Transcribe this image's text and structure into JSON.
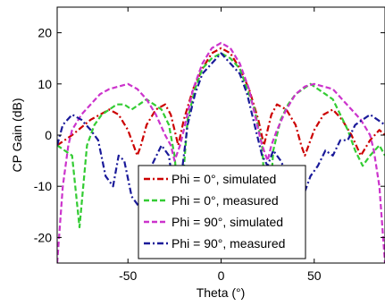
{
  "chart_data": {
    "type": "line",
    "title": "",
    "xlabel": "Theta (°)",
    "ylabel": "CP Gain (dB)",
    "xlim": [
      -88,
      88
    ],
    "ylim": [
      -25,
      25
    ],
    "xticks": [
      -50,
      0,
      50
    ],
    "yticks": [
      -20,
      -10,
      0,
      10,
      20
    ],
    "grid": false,
    "legend_position": "lower-center",
    "series": [
      {
        "name": "Phi = 0°, simulated",
        "color": "#cc0000",
        "style": "dash-dot",
        "x": [
          -88,
          -80,
          -70,
          -60,
          -55,
          -50,
          -47,
          -45,
          -43,
          -40,
          -35,
          -30,
          -27,
          -25,
          -23,
          -20,
          -15,
          -10,
          -5,
          0,
          5,
          10,
          15,
          20,
          23,
          25,
          27,
          30,
          35,
          40,
          43,
          45,
          47,
          50,
          55,
          60,
          65,
          70,
          75,
          80,
          85,
          88
        ],
        "y": [
          -2,
          0,
          3,
          5,
          4,
          1,
          -2,
          -4,
          -2,
          2,
          5,
          6,
          4,
          1,
          -2,
          3,
          9,
          13,
          16,
          17,
          16,
          13,
          9,
          3,
          -2,
          1,
          4,
          6,
          5,
          2,
          -2,
          -4,
          -2,
          1,
          4,
          5,
          3,
          0,
          -4,
          -1,
          1,
          0
        ]
      },
      {
        "name": "Phi = 0°, measured",
        "color": "#33cc33",
        "style": "dashed",
        "x": [
          -88,
          -80,
          -76,
          -72,
          -68,
          -64,
          -60,
          -56,
          -52,
          -48,
          -44,
          -40,
          -36,
          -32,
          -28,
          -25,
          -22,
          -18,
          -14,
          -10,
          -5,
          0,
          5,
          10,
          14,
          18,
          22,
          25,
          28,
          32,
          36,
          40,
          44,
          48,
          52,
          56,
          60,
          64,
          68,
          72,
          76,
          80,
          85,
          88
        ],
        "y": [
          -2,
          -4,
          -18,
          -2,
          2,
          4,
          5,
          6,
          6,
          5,
          6,
          7,
          6,
          5,
          2,
          -4,
          -16,
          3,
          9,
          13,
          15,
          16,
          15,
          13,
          9,
          5,
          -2,
          -20,
          -3,
          3,
          6,
          8,
          9,
          10,
          9,
          8,
          7,
          4,
          1,
          -3,
          -6,
          -4,
          -2,
          -4
        ]
      },
      {
        "name": "Phi = 90°, simulated",
        "color": "#cc33cc",
        "style": "dashed",
        "x": [
          -88,
          -85,
          -82,
          -80,
          -75,
          -70,
          -65,
          -60,
          -55,
          -50,
          -45,
          -40,
          -35,
          -30,
          -27,
          -25,
          -22,
          -20,
          -15,
          -10,
          -5,
          0,
          5,
          10,
          15,
          20,
          22,
          25,
          27,
          30,
          35,
          40,
          45,
          50,
          55,
          60,
          65,
          70,
          75,
          80,
          82,
          85,
          88
        ],
        "y": [
          -25,
          -10,
          -2,
          1,
          4,
          6,
          8,
          9,
          9.5,
          10,
          9,
          7,
          4,
          0,
          -2,
          -5,
          -2,
          1,
          9,
          14,
          17,
          18,
          17,
          14,
          9,
          1,
          -2,
          -5,
          -2,
          1,
          5,
          8,
          9.5,
          10,
          9.5,
          9,
          7,
          5,
          3,
          0,
          -3,
          -10,
          -25
        ]
      },
      {
        "name": "Phi = 90°, measured",
        "color": "#1a1a99",
        "style": "dash-dot",
        "x": [
          -88,
          -85,
          -80,
          -75,
          -70,
          -66,
          -62,
          -58,
          -55,
          -52,
          -48,
          -44,
          -40,
          -36,
          -32,
          -28,
          -25,
          -22,
          -18,
          -14,
          -10,
          -5,
          0,
          5,
          10,
          14,
          18,
          22,
          25,
          28,
          32,
          36,
          40,
          44,
          48,
          52,
          56,
          60,
          64,
          68,
          72,
          76,
          80,
          84,
          88
        ],
        "y": [
          -2,
          2,
          4,
          3,
          1,
          -1,
          -8,
          -10,
          -4,
          -5,
          -12,
          -14,
          -8,
          -5,
          -2,
          -4,
          -12,
          -10,
          2,
          8,
          12,
          14,
          16,
          14,
          12,
          8,
          2,
          -4,
          -6,
          -3,
          -5,
          -8,
          -10,
          -12,
          -8,
          -6,
          -3,
          -4,
          -1,
          -1,
          2,
          3,
          4,
          3,
          2
        ]
      }
    ]
  }
}
